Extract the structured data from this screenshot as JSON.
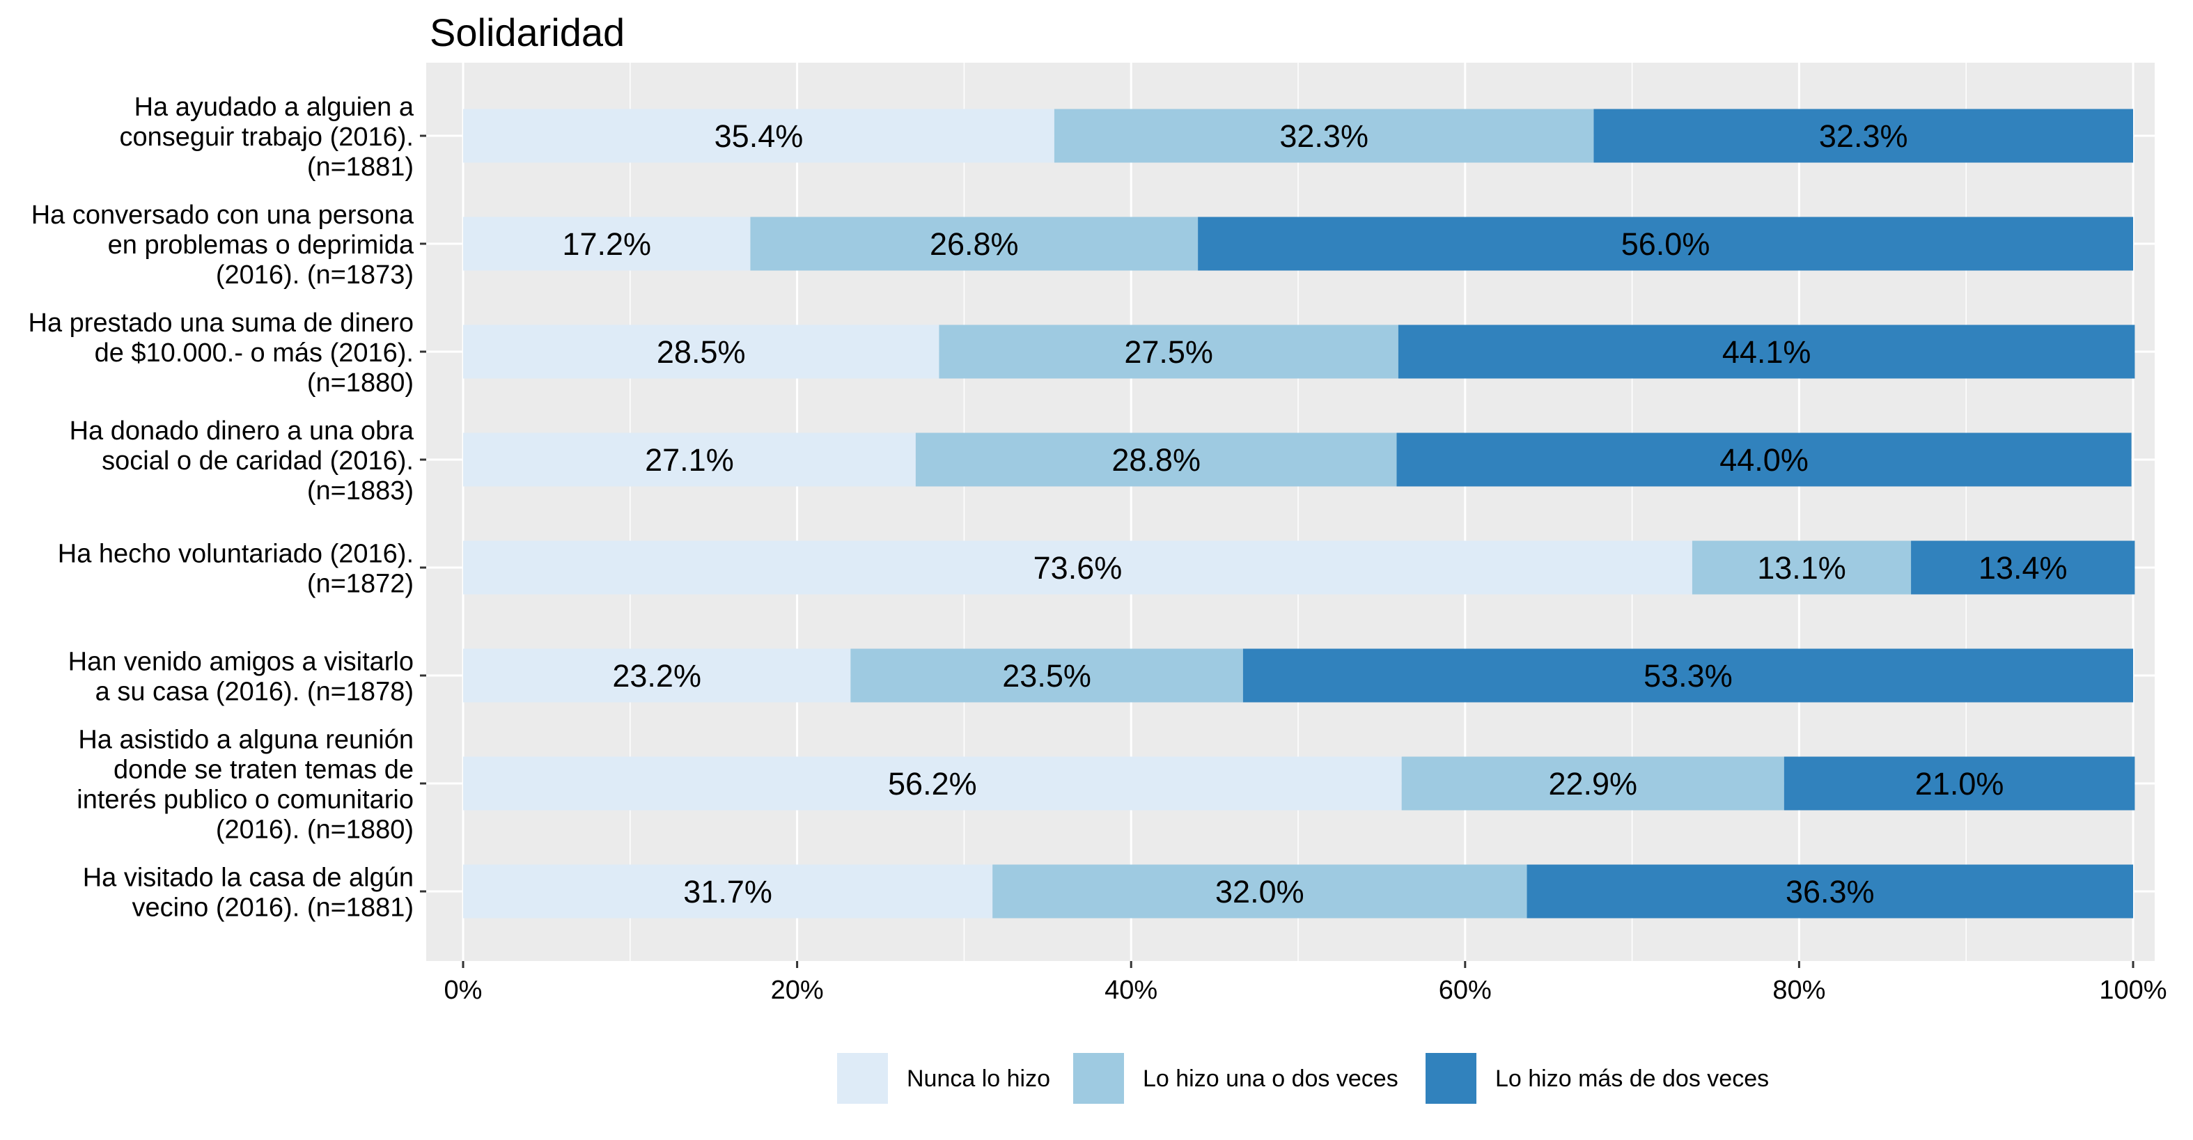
{
  "chart_data": {
    "type": "bar",
    "orientation": "horizontal",
    "stacked": true,
    "title": "Solidaridad",
    "xlabel": "",
    "ylabel": "",
    "xlim": [
      0,
      100
    ],
    "x_ticks": [
      "0%",
      "20%",
      "40%",
      "60%",
      "80%",
      "100%"
    ],
    "grid": true,
    "legend_position": "bottom",
    "categories": [
      [
        "Ha ayudado a alguien a",
        "conseguir trabajo (2016).",
        "(n=1881)"
      ],
      [
        "Ha conversado con una persona",
        "en problemas o deprimida",
        "(2016). (n=1873)"
      ],
      [
        "Ha prestado una suma de dinero",
        "de $10.000.- o más (2016).",
        "(n=1880)"
      ],
      [
        "Ha donado dinero a una obra",
        "social o de caridad (2016).",
        "(n=1883)"
      ],
      [
        "Ha hecho voluntariado (2016).",
        "(n=1872)"
      ],
      [
        "Han venido amigos a visitarlo",
        "a su casa (2016). (n=1878)"
      ],
      [
        "Ha asistido a alguna reunión",
        "donde se traten temas de",
        "interés publico o comunitario",
        "(2016). (n=1880)"
      ],
      [
        "Ha visitado la casa de algún",
        "vecino (2016). (n=1881)"
      ]
    ],
    "series": [
      {
        "name": "Nunca lo hizo",
        "color": "#deebf7",
        "values": [
          35.4,
          17.2,
          28.5,
          27.1,
          73.6,
          23.2,
          56.2,
          31.7
        ]
      },
      {
        "name": "Lo hizo una o dos veces",
        "color": "#9ecae1",
        "values": [
          32.3,
          26.8,
          27.5,
          28.8,
          13.1,
          23.5,
          22.9,
          32.0
        ]
      },
      {
        "name": "Lo hizo más de dos veces",
        "color": "#3182bd",
        "values": [
          32.3,
          56.0,
          44.1,
          44.0,
          13.4,
          53.3,
          21.0,
          36.3
        ]
      }
    ],
    "data_labels": [
      [
        "35.4%",
        "32.3%",
        "32.3%"
      ],
      [
        "17.2%",
        "26.8%",
        "56.0%"
      ],
      [
        "28.5%",
        "27.5%",
        "44.1%"
      ],
      [
        "27.1%",
        "28.8%",
        "44.0%"
      ],
      [
        "73.6%",
        "13.1%",
        "13.4%"
      ],
      [
        "23.2%",
        "23.5%",
        "53.3%"
      ],
      [
        "56.2%",
        "22.9%",
        "21.0%"
      ],
      [
        "31.7%",
        "32.0%",
        "36.3%"
      ]
    ],
    "panel_background": "#ebebeb"
  }
}
